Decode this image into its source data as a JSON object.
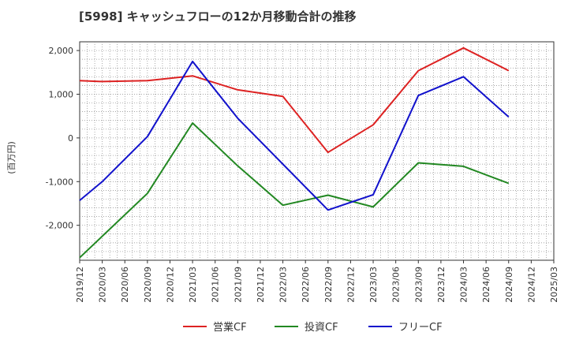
{
  "chart_data": {
    "type": "line",
    "title": "[5998]  キャッシュフローの12か月移動合計の推移",
    "xlabel": "",
    "ylabel": "(百万円)",
    "ylim": [
      -2800,
      2200
    ],
    "yticks": [
      2000,
      1000,
      0,
      -1000,
      -2000
    ],
    "ytick_labels": [
      "2,000",
      "1,000",
      "0",
      "-1,000",
      "-2,000"
    ],
    "categories": [
      "2019/12",
      "2020/03",
      "2020/06",
      "2020/09",
      "2020/12",
      "2021/03",
      "2021/06",
      "2021/09",
      "2021/12",
      "2022/03",
      "2022/06",
      "2022/09",
      "2022/12",
      "2023/03",
      "2023/06",
      "2023/09",
      "2023/12",
      "2024/03",
      "2024/06",
      "2024/09",
      "2024/12",
      "2025/03"
    ],
    "grid": true,
    "legend_position": "bottom",
    "series": [
      {
        "name": "営業CF",
        "color": "#dd2222",
        "points": [
          [
            "2019/12",
            1310
          ],
          [
            "2020/03",
            1290
          ],
          [
            "2020/09",
            1310
          ],
          [
            "2021/03",
            1420
          ],
          [
            "2021/09",
            1100
          ],
          [
            "2022/03",
            950
          ],
          [
            "2022/09",
            -330
          ],
          [
            "2023/03",
            300
          ],
          [
            "2023/09",
            1540
          ],
          [
            "2024/03",
            2060
          ],
          [
            "2024/09",
            1540
          ]
        ]
      },
      {
        "name": "投資CF",
        "color": "#228822",
        "points": [
          [
            "2019/12",
            -2740
          ],
          [
            "2020/09",
            -1270
          ],
          [
            "2021/03",
            340
          ],
          [
            "2021/09",
            -640
          ],
          [
            "2022/03",
            -1540
          ],
          [
            "2022/09",
            -1310
          ],
          [
            "2023/03",
            -1580
          ],
          [
            "2023/09",
            -570
          ],
          [
            "2024/03",
            -650
          ],
          [
            "2024/09",
            -1040
          ]
        ]
      },
      {
        "name": "フリーCF",
        "color": "#1111cc",
        "points": [
          [
            "2019/12",
            -1430
          ],
          [
            "2020/03",
            -1000
          ],
          [
            "2020/09",
            30
          ],
          [
            "2021/03",
            1750
          ],
          [
            "2021/09",
            450
          ],
          [
            "2022/09",
            -1650
          ],
          [
            "2023/03",
            -1300
          ],
          [
            "2023/09",
            970
          ],
          [
            "2024/03",
            1400
          ],
          [
            "2024/09",
            480
          ]
        ]
      }
    ]
  }
}
